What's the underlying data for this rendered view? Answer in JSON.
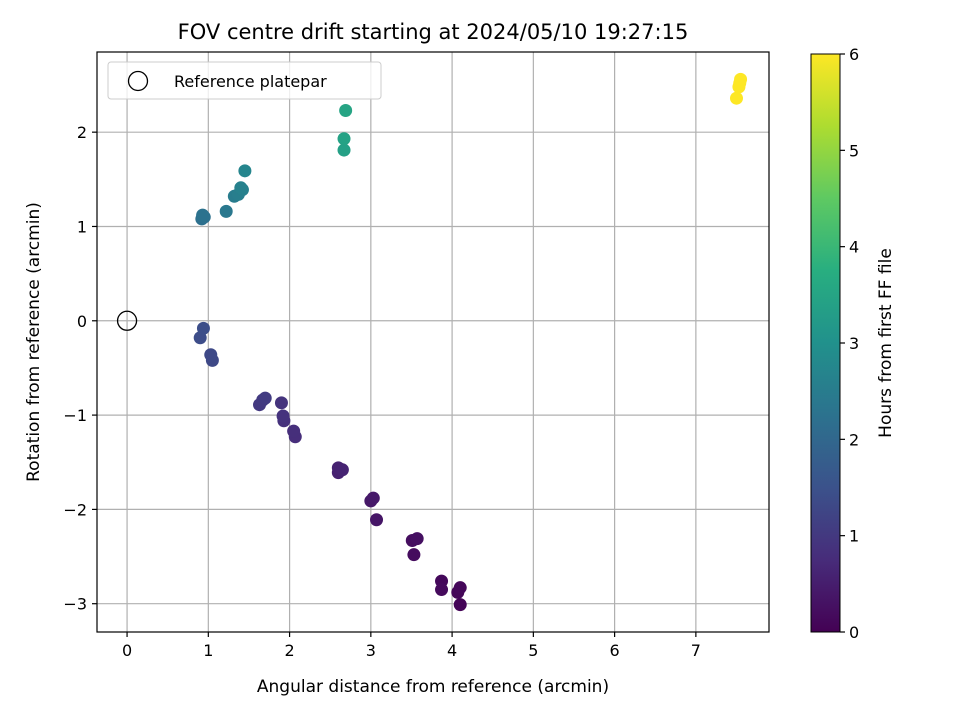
{
  "chart_data": {
    "type": "scatter",
    "title": "FOV centre drift starting at 2024/05/10 19:27:15",
    "xlabel": "Angular distance from reference (arcmin)",
    "ylabel": "Rotation from reference (arcmin)",
    "xlim": [
      -0.37,
      7.9
    ],
    "ylim": [
      -3.3,
      2.85
    ],
    "xticks": [
      0,
      1,
      2,
      3,
      4,
      5,
      6,
      7
    ],
    "yticks": [
      -3,
      -2,
      -1,
      0,
      1,
      2
    ],
    "xtick_labels": [
      "0",
      "1",
      "2",
      "3",
      "4",
      "5",
      "6",
      "7"
    ],
    "ytick_labels": [
      "−3",
      "−2",
      "−1",
      "0",
      "1",
      "2"
    ],
    "grid": true,
    "legend": {
      "placement": "top-left",
      "entries": [
        "Reference platepar"
      ]
    },
    "reference": {
      "x": 0,
      "y": 0,
      "label": "Reference platepar"
    },
    "colorbar": {
      "label": "Hours from first FF file",
      "range": [
        0,
        6
      ],
      "ticks": [
        0,
        1,
        2,
        3,
        4,
        5,
        6
      ],
      "tick_labels": [
        "0",
        "1",
        "2",
        "3",
        "4",
        "5",
        "6"
      ],
      "colormap": "viridis"
    },
    "points": [
      {
        "x": 4.1,
        "y": -3.01,
        "t": 0.05
      },
      {
        "x": 4.07,
        "y": -2.88,
        "t": 0.08
      },
      {
        "x": 4.1,
        "y": -2.83,
        "t": 0.1
      },
      {
        "x": 3.87,
        "y": -2.76,
        "t": 0.12
      },
      {
        "x": 3.87,
        "y": -2.85,
        "t": 0.15
      },
      {
        "x": 3.53,
        "y": -2.48,
        "t": 0.2
      },
      {
        "x": 3.51,
        "y": -2.33,
        "t": 0.22
      },
      {
        "x": 3.57,
        "y": -2.31,
        "t": 0.25
      },
      {
        "x": 3.07,
        "y": -2.11,
        "t": 0.35
      },
      {
        "x": 3.0,
        "y": -1.91,
        "t": 0.4
      },
      {
        "x": 3.03,
        "y": -1.88,
        "t": 0.42
      },
      {
        "x": 2.6,
        "y": -1.61,
        "t": 0.55
      },
      {
        "x": 2.6,
        "y": -1.56,
        "t": 0.58
      },
      {
        "x": 2.65,
        "y": -1.58,
        "t": 0.6
      },
      {
        "x": 2.07,
        "y": -1.23,
        "t": 0.78
      },
      {
        "x": 2.05,
        "y": -1.17,
        "t": 0.8
      },
      {
        "x": 1.93,
        "y": -1.06,
        "t": 0.85
      },
      {
        "x": 1.92,
        "y": -1.01,
        "t": 0.88
      },
      {
        "x": 1.9,
        "y": -0.87,
        "t": 0.9
      },
      {
        "x": 1.63,
        "y": -0.89,
        "t": 1.0
      },
      {
        "x": 1.67,
        "y": -0.84,
        "t": 1.02
      },
      {
        "x": 1.7,
        "y": -0.82,
        "t": 1.05
      },
      {
        "x": 1.05,
        "y": -0.42,
        "t": 1.3
      },
      {
        "x": 1.03,
        "y": -0.36,
        "t": 1.33
      },
      {
        "x": 0.9,
        "y": -0.18,
        "t": 1.4
      },
      {
        "x": 0.94,
        "y": -0.08,
        "t": 1.43
      },
      {
        "x": 0.92,
        "y": 1.08,
        "t": 2.2
      },
      {
        "x": 0.95,
        "y": 1.1,
        "t": 2.22
      },
      {
        "x": 0.93,
        "y": 1.12,
        "t": 2.25
      },
      {
        "x": 1.22,
        "y": 1.16,
        "t": 2.4
      },
      {
        "x": 1.32,
        "y": 1.32,
        "t": 2.5
      },
      {
        "x": 1.37,
        "y": 1.34,
        "t": 2.55
      },
      {
        "x": 1.42,
        "y": 1.39,
        "t": 2.6
      },
      {
        "x": 1.4,
        "y": 1.41,
        "t": 2.62
      },
      {
        "x": 1.45,
        "y": 1.59,
        "t": 2.7
      },
      {
        "x": 2.67,
        "y": 1.81,
        "t": 3.4
      },
      {
        "x": 2.67,
        "y": 1.93,
        "t": 3.45
      },
      {
        "x": 2.69,
        "y": 2.23,
        "t": 3.5
      },
      {
        "x": 7.5,
        "y": 2.36,
        "t": 6.0
      },
      {
        "x": 7.53,
        "y": 2.48,
        "t": 6.0
      },
      {
        "x": 7.54,
        "y": 2.52,
        "t": 6.0
      },
      {
        "x": 7.55,
        "y": 2.56,
        "t": 6.0
      }
    ]
  }
}
